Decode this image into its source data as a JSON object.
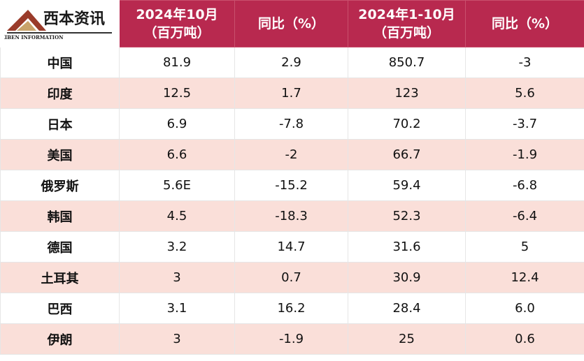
{
  "logo": {
    "title": "西本资讯",
    "subtitle": "XIBEN INFORMATION"
  },
  "header": {
    "columns": [
      [
        "2024年10月",
        "（百万吨）"
      ],
      [
        "同比（%）"
      ],
      [
        "2024年1-10月",
        "（百万吨）"
      ],
      [
        "同比（%）"
      ]
    ]
  },
  "table": {
    "rows": [
      [
        "中国",
        "81.9",
        "2.9",
        "850.7",
        "-3"
      ],
      [
        "印度",
        "12.5",
        "1.7",
        "123",
        "5.6"
      ],
      [
        "日本",
        "6.9",
        "-7.8",
        "70.2",
        "-3.7"
      ],
      [
        "美国",
        "6.6",
        "-2",
        "66.7",
        "-1.9"
      ],
      [
        "俄罗斯",
        "5.6E",
        "-15.2",
        "59.4",
        "-6.8"
      ],
      [
        "韩国",
        "4.5",
        "-18.3",
        "52.3",
        "-6.4"
      ],
      [
        "德国",
        "3.2",
        "14.7",
        "31.6",
        "5"
      ],
      [
        "土耳其",
        "3",
        "0.7",
        "30.9",
        "12.4"
      ],
      [
        "巴西",
        "3.1",
        "16.2",
        "28.4",
        "6.0"
      ],
      [
        "伊朗",
        "3",
        "-1.9",
        "25",
        "0.6"
      ]
    ]
  }
}
